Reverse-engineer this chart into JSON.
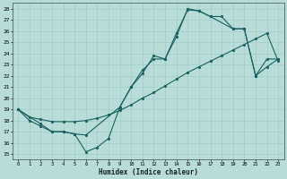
{
  "xlabel": "Humidex (Indice chaleur)",
  "xlim": [
    -0.5,
    23.5
  ],
  "ylim": [
    14.5,
    28.5
  ],
  "yticks": [
    15,
    16,
    17,
    18,
    19,
    20,
    21,
    22,
    23,
    24,
    25,
    26,
    27,
    28
  ],
  "xticks": [
    0,
    1,
    2,
    3,
    4,
    5,
    6,
    7,
    8,
    9,
    10,
    11,
    12,
    13,
    14,
    15,
    16,
    17,
    18,
    19,
    20,
    21,
    22,
    23
  ],
  "bg_color": "#b8ddd8",
  "line_color": "#1a6060",
  "grid_color": "#a0ccc8",
  "line1_x": [
    0,
    1,
    2,
    3,
    4,
    5,
    6,
    7,
    8,
    9,
    10,
    11,
    12,
    13,
    14,
    15,
    16,
    17,
    18,
    19,
    20,
    21,
    22,
    23
  ],
  "line1_y": [
    19,
    18,
    17.5,
    17,
    17,
    16.8,
    15.2,
    15.6,
    16.4,
    19.2,
    21.0,
    22.5,
    23.5,
    23.5,
    25.8,
    27.9,
    27.8,
    27.3,
    27.3,
    26.2,
    26.2,
    22.0,
    23.5,
    23.5
  ],
  "line2_x": [
    0,
    2,
    3,
    4,
    5,
    6,
    9,
    10,
    11,
    12,
    13,
    14,
    15,
    16,
    17,
    19,
    20,
    21,
    22,
    23
  ],
  "line2_y": [
    19,
    17.7,
    17,
    17,
    16.8,
    16.7,
    19.2,
    21.0,
    22.2,
    23.8,
    23.5,
    25.5,
    28.0,
    27.8,
    27.3,
    26.2,
    26.2,
    22.0,
    22.8,
    23.5
  ],
  "line3_x": [
    0,
    1,
    2,
    3,
    4,
    5,
    6,
    7,
    8,
    9,
    10,
    11,
    12,
    13,
    14,
    15,
    16,
    17,
    18,
    19,
    20,
    21,
    22,
    23
  ],
  "line3_y": [
    19.0,
    18.3,
    18.1,
    17.9,
    17.9,
    17.9,
    18.0,
    18.2,
    18.5,
    18.9,
    19.4,
    20.0,
    20.5,
    21.1,
    21.7,
    22.3,
    22.8,
    23.3,
    23.8,
    24.3,
    24.8,
    25.3,
    25.8,
    23.3
  ]
}
